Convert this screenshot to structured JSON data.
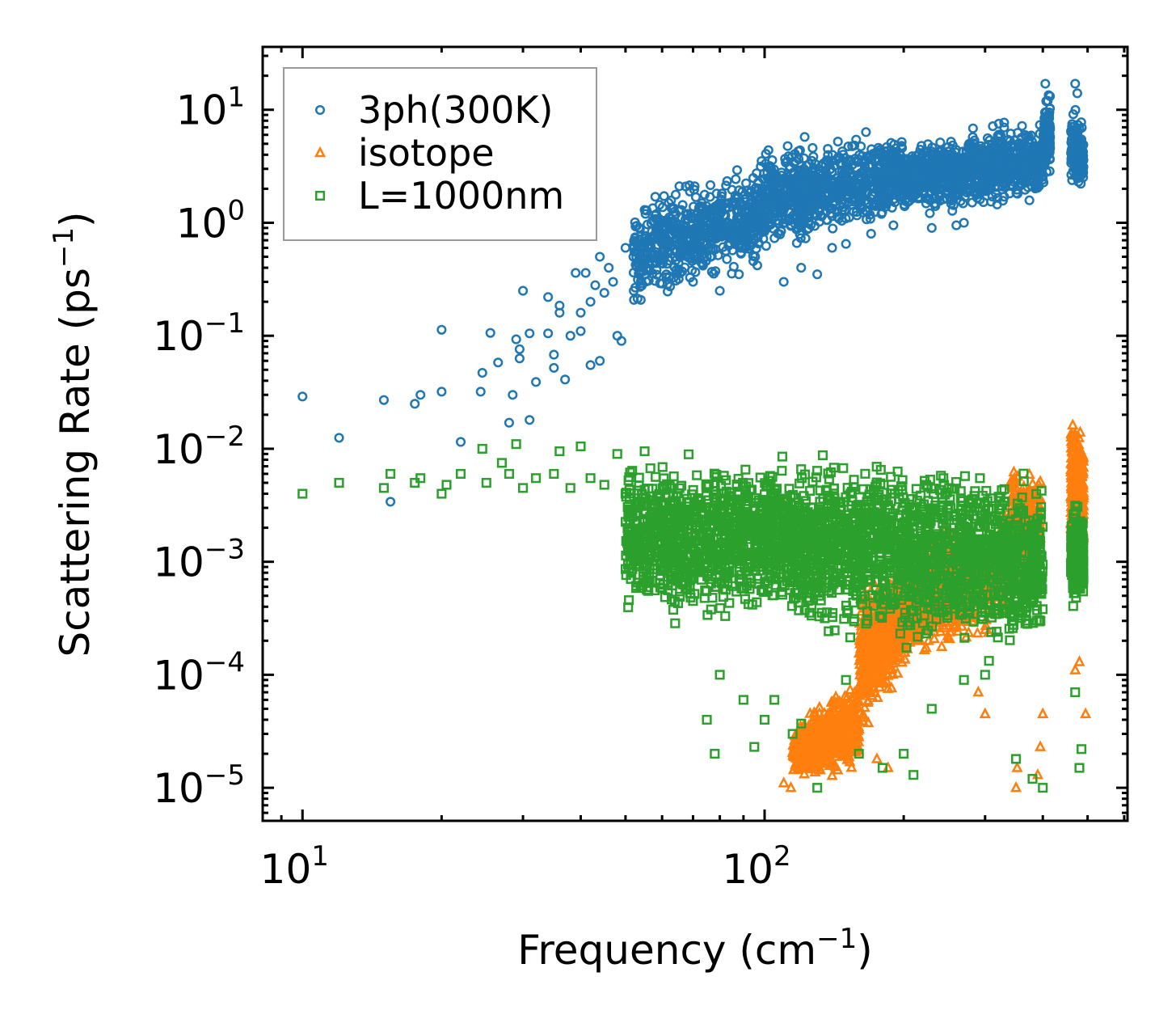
{
  "chart_data": {
    "type": "scatter",
    "xscale": "log",
    "yscale": "log",
    "xlabel": {
      "text": "Frequency (cm",
      "sup": "−1",
      "tail": ")"
    },
    "ylabel": {
      "text": "Scattering Rate (ps",
      "sup": "−1",
      "tail": ")"
    },
    "xlim": [
      8.2,
      610
    ],
    "ylim": [
      5.1e-06,
      36
    ],
    "xticks": [
      {
        "base": "10",
        "exp": "1",
        "value": 10
      },
      {
        "base": "10",
        "exp": "2",
        "value": 100
      }
    ],
    "yticks": [
      {
        "base": "10",
        "exp": "1",
        "value": 10
      },
      {
        "base": "10",
        "exp": "0",
        "value": 1
      },
      {
        "base": "10",
        "exp": "−1",
        "value": 0.1
      },
      {
        "base": "10",
        "exp": "−2",
        "value": 0.01
      },
      {
        "base": "10",
        "exp": "−3",
        "value": 0.001
      },
      {
        "base": "10",
        "exp": "−4",
        "value": 0.0001
      },
      {
        "base": "10",
        "exp": "−5",
        "value": 1e-05
      }
    ],
    "legend_position": "top-left",
    "series": [
      {
        "name": "3ph(300K)",
        "marker": "circle",
        "color": "#1f77b4",
        "points": [
          [
            10,
            0.029
          ],
          [
            12,
            0.0125
          ],
          [
            15,
            0.027
          ],
          [
            15.5,
            0.0034
          ],
          [
            17.5,
            0.025
          ],
          [
            18,
            0.03
          ],
          [
            20,
            0.113
          ],
          [
            20,
            0.032
          ],
          [
            22,
            0.0115
          ],
          [
            24.5,
            0.047
          ],
          [
            24.3,
            0.032
          ],
          [
            25.5,
            0.106
          ],
          [
            26.5,
            0.058
          ],
          [
            28,
            0.017
          ],
          [
            28.5,
            0.03
          ],
          [
            29,
            0.093
          ],
          [
            29.5,
            0.076
          ],
          [
            29.5,
            0.063
          ],
          [
            30,
            0.25
          ],
          [
            31,
            0.018
          ],
          [
            31,
            0.105
          ],
          [
            32,
            0.039
          ],
          [
            34,
            0.22
          ],
          [
            34,
            0.105
          ],
          [
            35,
            0.068
          ],
          [
            35,
            0.052
          ],
          [
            36,
            0.185
          ],
          [
            36,
            0.16
          ],
          [
            37,
            0.041
          ],
          [
            38,
            0.1
          ],
          [
            39,
            0.36
          ],
          [
            40,
            0.11
          ],
          [
            40,
            0.16
          ],
          [
            41,
            0.36
          ],
          [
            42,
            0.055
          ],
          [
            42,
            0.2
          ],
          [
            43,
            0.28
          ],
          [
            44,
            0.06
          ],
          [
            44,
            0.5
          ],
          [
            45,
            0.24
          ],
          [
            46,
            0.4
          ],
          [
            47,
            0.3
          ],
          [
            48,
            0.1
          ],
          [
            49,
            0.09
          ],
          [
            50,
            0.6
          ],
          [
            52,
            0.5
          ],
          [
            55,
            1.3
          ],
          [
            58,
            1.7
          ],
          [
            60,
            1.0
          ],
          [
            62,
            1.5
          ],
          [
            64,
            0.5
          ],
          [
            66,
            1.3
          ],
          [
            70,
            0.3
          ],
          [
            75,
            0.5
          ],
          [
            80,
            0.25
          ],
          [
            88,
            0.35
          ],
          [
            110,
            0.3
          ],
          [
            120,
            0.4
          ],
          [
            130,
            0.35
          ],
          [
            140,
            0.6
          ],
          [
            150,
            0.65
          ],
          [
            170,
            0.8
          ],
          [
            190,
            0.95
          ],
          [
            230,
            0.9
          ],
          [
            260,
            0.95
          ],
          [
            270,
            1.0
          ],
          [
            330,
            1.7
          ],
          [
            405,
            17
          ],
          [
            410,
            12
          ],
          [
            470,
            17
          ],
          [
            475,
            14
          ]
        ],
        "bands": [
          [
            52,
            100,
            0.12,
            1.4,
            0.3,
            4.0,
            650
          ],
          [
            100,
            200,
            0.4,
            4.5,
            0.9,
            6.5,
            800
          ],
          [
            200,
            400,
            0.9,
            5.0,
            1.2,
            8.0,
            900
          ],
          [
            400,
            415,
            1.6,
            9,
            1.8,
            17,
            120
          ],
          [
            460,
            490,
            1.6,
            10,
            1.6,
            7,
            150
          ]
        ]
      },
      {
        "name": "isotope",
        "marker": "triangle",
        "color": "#ff7f0e",
        "points": [
          [
            110,
            1.1e-05
          ],
          [
            114,
            1e-05
          ],
          [
            175,
            1.8e-05
          ],
          [
            185,
            1.5e-05
          ],
          [
            390,
            1.3e-05
          ],
          [
            395,
            2.3e-05
          ],
          [
            400,
            4.5e-05
          ],
          [
            350,
            1e-05
          ],
          [
            352,
            1.5e-05
          ],
          [
            480,
            0.00013
          ],
          [
            495,
            4.5e-05
          ],
          [
            470,
            0.00011
          ],
          [
            290,
            7e-05
          ],
          [
            300,
            4.5e-05
          ]
        ],
        "bands": [
          [
            115,
            160,
            1e-05,
            3.5e-05,
            1e-05,
            0.0001,
            600
          ],
          [
            160,
            215,
            2e-05,
            0.0006,
            0.0001,
            0.0012,
            700
          ],
          [
            215,
            300,
            0.0001,
            0.0015,
            0.00015,
            0.0025,
            600
          ],
          [
            300,
            340,
            0.00015,
            0.002,
            0.0003,
            0.003,
            200
          ],
          [
            340,
            395,
            0.0004,
            0.008,
            0.0006,
            0.006,
            300
          ],
          [
            460,
            490,
            0.0005,
            0.02,
            0.0005,
            0.015,
            350
          ]
        ]
      },
      {
        "name": "L=1000nm",
        "marker": "square",
        "color": "#2ca02c",
        "points": [
          [
            10,
            0.004
          ],
          [
            12,
            0.005
          ],
          [
            15,
            0.0045
          ],
          [
            15.5,
            0.006
          ],
          [
            17.5,
            0.005
          ],
          [
            18,
            0.0055
          ],
          [
            20,
            0.004
          ],
          [
            20.5,
            0.0048
          ],
          [
            22,
            0.006
          ],
          [
            24.5,
            0.01
          ],
          [
            25,
            0.005
          ],
          [
            27,
            0.0075
          ],
          [
            28,
            0.006
          ],
          [
            29,
            0.011
          ],
          [
            30,
            0.0045
          ],
          [
            32,
            0.0055
          ],
          [
            35,
            0.006
          ],
          [
            36,
            0.0095
          ],
          [
            38,
            0.0045
          ],
          [
            40,
            0.0105
          ],
          [
            42,
            0.0055
          ],
          [
            45,
            0.0048
          ],
          [
            48,
            0.009
          ],
          [
            50,
            0.004
          ],
          [
            55,
            0.0095
          ],
          [
            60,
            0.001
          ],
          [
            65,
            0.00043
          ],
          [
            70,
            0.00045
          ],
          [
            75,
            4e-05
          ],
          [
            78,
            2e-05
          ],
          [
            80,
            0.0001
          ],
          [
            90,
            6e-05
          ],
          [
            95,
            2.3e-05
          ],
          [
            100,
            4e-05
          ],
          [
            105,
            6e-05
          ],
          [
            115,
            3e-05
          ],
          [
            120,
            3.7e-05
          ],
          [
            130,
            1e-05
          ],
          [
            150,
            9e-05
          ],
          [
            160,
            2e-05
          ],
          [
            180,
            1.5e-05
          ],
          [
            200,
            2e-05
          ],
          [
            210,
            1.3e-05
          ],
          [
            230,
            5e-05
          ],
          [
            270,
            9e-05
          ],
          [
            300,
            0.0001
          ],
          [
            350,
            1.8e-05
          ],
          [
            380,
            1.2e-05
          ],
          [
            400,
            1e-05
          ],
          [
            480,
            1.5e-05
          ],
          [
            485,
            2.2e-05
          ],
          [
            470,
            7e-05
          ]
        ],
        "bands": [
          [
            50,
            100,
            0.0002,
            0.008,
            0.0002,
            0.008,
            900
          ],
          [
            100,
            200,
            0.0002,
            0.008,
            0.0001,
            0.008,
            1000
          ],
          [
            200,
            400,
            0.0001,
            0.008,
            0.0001,
            0.005,
            1000
          ],
          [
            460,
            490,
            0.0003,
            0.0032,
            0.0003,
            0.0032,
            220
          ]
        ]
      }
    ]
  }
}
